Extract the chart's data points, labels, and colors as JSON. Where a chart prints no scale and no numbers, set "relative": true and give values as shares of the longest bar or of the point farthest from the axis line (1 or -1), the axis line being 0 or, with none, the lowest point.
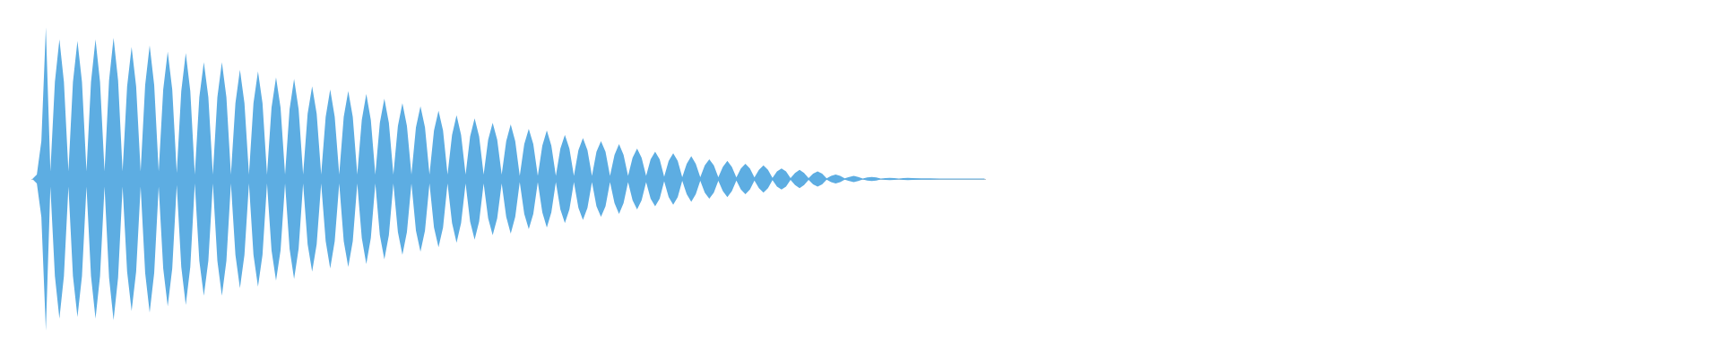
{
  "chart_data": {
    "type": "area",
    "relative": true,
    "categories": [
      null,
      null,
      null,
      null,
      null,
      null,
      null,
      null,
      null,
      null,
      null,
      null,
      null,
      null,
      null,
      null,
      null,
      null,
      null,
      null,
      null,
      null,
      null,
      null,
      null,
      null,
      null,
      null,
      null,
      null,
      null,
      null,
      null,
      null,
      null,
      null,
      null,
      null,
      null,
      null,
      null,
      null,
      null,
      null,
      null,
      null,
      null,
      null,
      null,
      null,
      null,
      null,
      null,
      null,
      null,
      null,
      null,
      null,
      null,
      null,
      null,
      null,
      null,
      null,
      null,
      null,
      null,
      null,
      null,
      null,
      null,
      null,
      null,
      null,
      null,
      null,
      null,
      null,
      null,
      null,
      null,
      null,
      null,
      null,
      null,
      null,
      null,
      null,
      null,
      null,
      null,
      null,
      null,
      null,
      null,
      null,
      null,
      null,
      null,
      null,
      null,
      null,
      null,
      null,
      null,
      null,
      null,
      null,
      null,
      null,
      null,
      null,
      null,
      null,
      null,
      null,
      null,
      null,
      null,
      null,
      null,
      null,
      null,
      null,
      null,
      null,
      null,
      null,
      null,
      null,
      null,
      null,
      null,
      null,
      null,
      null,
      null,
      null,
      null,
      null,
      null,
      null,
      null,
      null,
      null,
      null,
      null,
      null,
      null,
      null,
      null,
      null,
      null,
      null,
      null,
      null,
      null,
      null,
      null,
      null,
      null,
      null,
      null,
      null,
      null,
      null,
      null,
      null,
      null,
      null,
      null,
      null,
      null,
      null,
      null,
      null,
      null,
      null,
      null,
      null,
      null,
      null,
      null,
      null,
      null,
      null,
      null,
      null,
      null,
      null,
      null,
      null,
      null,
      null,
      null,
      null,
      null,
      null,
      null,
      null,
      null,
      null,
      null,
      null,
      null,
      null,
      null,
      null,
      null,
      null,
      null,
      null
    ],
    "series": [
      {
        "color": "#5dade2",
        "values": [
          0,
          0.03,
          0.25,
          1.0,
          0.05,
          0.64,
          0.92,
          0.64,
          0.05,
          0.64,
          0.91,
          0.64,
          0.05,
          0.64,
          0.92,
          0.64,
          0.05,
          0.65,
          0.93,
          0.65,
          0.05,
          0.61,
          0.87,
          0.61,
          0.05,
          0.62,
          0.88,
          0.62,
          0.05,
          0.59,
          0.84,
          0.59,
          0.04,
          0.58,
          0.83,
          0.58,
          0.03,
          0.54,
          0.77,
          0.54,
          0.03,
          0.54,
          0.77,
          0.54,
          0.03,
          0.5,
          0.72,
          0.5,
          0.03,
          0.5,
          0.71,
          0.5,
          0.03,
          0.47,
          0.67,
          0.47,
          0.03,
          0.46,
          0.66,
          0.46,
          0.03,
          0.43,
          0.61,
          0.43,
          0.03,
          0.41,
          0.59,
          0.41,
          0.03,
          0.41,
          0.58,
          0.41,
          0.03,
          0.39,
          0.56,
          0.39,
          0.03,
          0.37,
          0.53,
          0.37,
          0.03,
          0.35,
          0.5,
          0.35,
          0.03,
          0.34,
          0.48,
          0.34,
          0.03,
          0.32,
          0.45,
          0.32,
          0.03,
          0.29,
          0.42,
          0.29,
          0.03,
          0.28,
          0.4,
          0.28,
          0.03,
          0.26,
          0.37,
          0.26,
          0.03,
          0.25,
          0.36,
          0.25,
          0.02,
          0.23,
          0.33,
          0.23,
          0.02,
          0.22,
          0.32,
          0.22,
          0.02,
          0.2,
          0.29,
          0.2,
          0.02,
          0.19,
          0.27,
          0.19,
          0.02,
          0.18,
          0.25,
          0.18,
          0.02,
          0.16,
          0.23,
          0.16,
          0.02,
          0.14,
          0.2,
          0.14,
          0.02,
          0.13,
          0.18,
          0.13,
          0.015,
          0.12,
          0.17,
          0.12,
          0.012,
          0.1,
          0.15,
          0.1,
          0.012,
          0.09,
          0.13,
          0.09,
          0.012,
          0.08,
          0.12,
          0.08,
          0.01,
          0.07,
          0.1,
          0.07,
          0.01,
          0.06,
          0.09,
          0.06,
          0.008,
          0.05,
          0.07,
          0.05,
          0.006,
          0.04,
          0.06,
          0.04,
          0.006,
          0.035,
          0.05,
          0.035,
          0.005,
          0.021,
          0.03,
          0.021,
          0.004,
          0.014,
          0.02,
          0.014,
          0.003,
          0.01,
          0.014,
          0.01,
          0.003,
          0.006,
          0.008,
          0.006,
          0.003,
          0.006,
          0.008,
          0.006,
          null,
          0.004,
          0.004,
          0.004,
          null,
          0.003,
          0.003,
          0.003,
          null,
          0.003,
          0.003,
          0.003,
          null,
          null,
          0.003,
          0.003
        ]
      },
      {
        "color": "#5dade2",
        "values": [
          0,
          -0.03,
          -0.25,
          -1.0,
          -0.05,
          -0.64,
          -0.92,
          -0.64,
          -0.05,
          -0.64,
          -0.91,
          -0.64,
          -0.05,
          -0.64,
          -0.92,
          -0.64,
          -0.05,
          -0.65,
          -0.93,
          -0.65,
          -0.05,
          -0.61,
          -0.87,
          -0.61,
          -0.05,
          -0.62,
          -0.88,
          -0.62,
          -0.05,
          -0.59,
          -0.84,
          -0.59,
          -0.04,
          -0.58,
          -0.83,
          -0.58,
          -0.03,
          -0.54,
          -0.77,
          -0.54,
          -0.03,
          -0.54,
          -0.77,
          -0.54,
          -0.03,
          -0.5,
          -0.72,
          -0.5,
          -0.03,
          -0.5,
          -0.71,
          -0.5,
          -0.03,
          -0.47,
          -0.67,
          -0.47,
          -0.03,
          -0.46,
          -0.66,
          -0.46,
          -0.03,
          -0.43,
          -0.61,
          -0.43,
          -0.03,
          -0.41,
          -0.59,
          -0.41,
          -0.03,
          -0.41,
          -0.58,
          -0.41,
          -0.03,
          -0.39,
          -0.56,
          -0.39,
          -0.03,
          -0.37,
          -0.53,
          -0.37,
          -0.03,
          -0.35,
          -0.5,
          -0.35,
          -0.03,
          -0.34,
          -0.48,
          -0.34,
          -0.03,
          -0.32,
          -0.45,
          -0.32,
          -0.03,
          -0.29,
          -0.42,
          -0.29,
          -0.03,
          -0.28,
          -0.4,
          -0.28,
          -0.03,
          -0.26,
          -0.37,
          -0.26,
          -0.03,
          -0.25,
          -0.36,
          -0.25,
          -0.02,
          -0.23,
          -0.33,
          -0.23,
          -0.02,
          -0.22,
          -0.32,
          -0.22,
          -0.02,
          -0.2,
          -0.29,
          -0.2,
          -0.02,
          -0.19,
          -0.27,
          -0.19,
          -0.02,
          -0.18,
          -0.25,
          -0.18,
          -0.02,
          -0.16,
          -0.23,
          -0.16,
          -0.02,
          -0.14,
          -0.2,
          -0.14,
          -0.02,
          -0.13,
          -0.18,
          -0.13,
          -0.015,
          -0.12,
          -0.17,
          -0.12,
          -0.012,
          -0.1,
          -0.15,
          -0.1,
          -0.012,
          -0.09,
          -0.13,
          -0.09,
          -0.012,
          -0.08,
          -0.12,
          -0.08,
          -0.01,
          -0.07,
          -0.1,
          -0.07,
          -0.01,
          -0.06,
          -0.09,
          -0.06,
          -0.008,
          -0.05,
          -0.07,
          -0.05,
          -0.006,
          -0.04,
          -0.06,
          -0.04,
          -0.006,
          -0.035,
          -0.05,
          -0.035,
          -0.005,
          -0.021,
          -0.03,
          -0.021,
          -0.004,
          -0.014,
          -0.02,
          -0.014,
          -0.003,
          -0.01,
          -0.014,
          -0.01,
          -0.003,
          -0.006,
          -0.008,
          -0.006,
          -0.003,
          -0.006,
          -0.008,
          -0.006,
          null,
          -0.004,
          -0.004,
          -0.004,
          null,
          -0.003,
          -0.003,
          -0.003,
          null,
          -0.003,
          -0.003,
          -0.003,
          null,
          null,
          -0.003,
          -0.003
        ]
      }
    ]
  }
}
